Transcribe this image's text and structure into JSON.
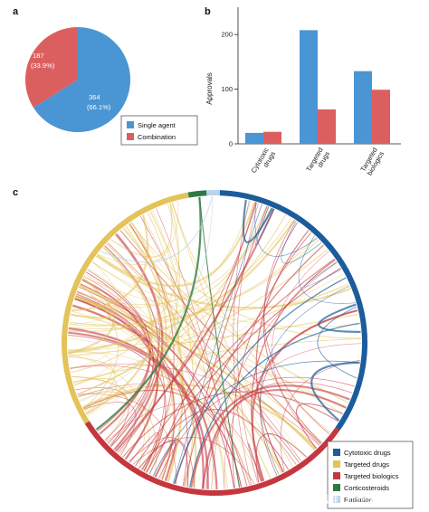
{
  "panels": {
    "a": "a",
    "b": "b",
    "c": "c"
  },
  "colors": {
    "single_agent": "#4a95d4",
    "combination": "#dc5f5f",
    "cytotoxic": "#1c5c9c",
    "targeted_drugs": "#e3c35a",
    "targeted_biologics": "#c4373f",
    "corticosteroids": "#2f7a44",
    "radiation": "#b9d3ea"
  },
  "chart_data": [
    {
      "type": "pie",
      "slices": [
        {
          "name": "Single agent",
          "value": 364,
          "label_value": "364",
          "label_pct": "(66.1%)",
          "color": "#4a95d4"
        },
        {
          "name": "Combination",
          "value": 187,
          "label_value": "187",
          "label_pct": "(33.9%)",
          "color": "#dc5f5f"
        }
      ],
      "legend": [
        "Single agent",
        "Combination"
      ],
      "legend_position": "bottom-right"
    },
    {
      "type": "bar",
      "categories": [
        [
          "Cytotoxic",
          "drugs"
        ],
        [
          "Targeted",
          "drugs"
        ],
        [
          "Targeted",
          "biologics"
        ]
      ],
      "series": [
        {
          "name": "Single agent",
          "values": [
            20,
            208,
            133
          ],
          "color": "#4a95d4"
        },
        {
          "name": "Combination",
          "values": [
            22,
            63,
            99
          ],
          "color": "#dc5f5f"
        }
      ],
      "ylabel": "Approvals",
      "yticks": [
        "0",
        "100",
        "200"
      ],
      "ylim": [
        0,
        250
      ],
      "grid": false
    },
    {
      "type": "chord",
      "segments": [
        {
          "name": "Cytotoxic drugs",
          "color": "#1c5c9c"
        },
        {
          "name": "Targeted drugs",
          "color": "#e3c35a"
        },
        {
          "name": "Targeted biologics",
          "color": "#c4373f"
        },
        {
          "name": "Corticosteroids",
          "color": "#2f7a44"
        },
        {
          "name": "Radiation",
          "color": "#b9d3ea"
        }
      ],
      "legend": [
        "Cytotoxic drugs",
        "Targeted drugs",
        "Targeted biologics",
        "Corticosteroids",
        "Radiation"
      ],
      "legend_position": "bottom-right"
    }
  ],
  "watermark": "雪球 · biotech前瞻"
}
